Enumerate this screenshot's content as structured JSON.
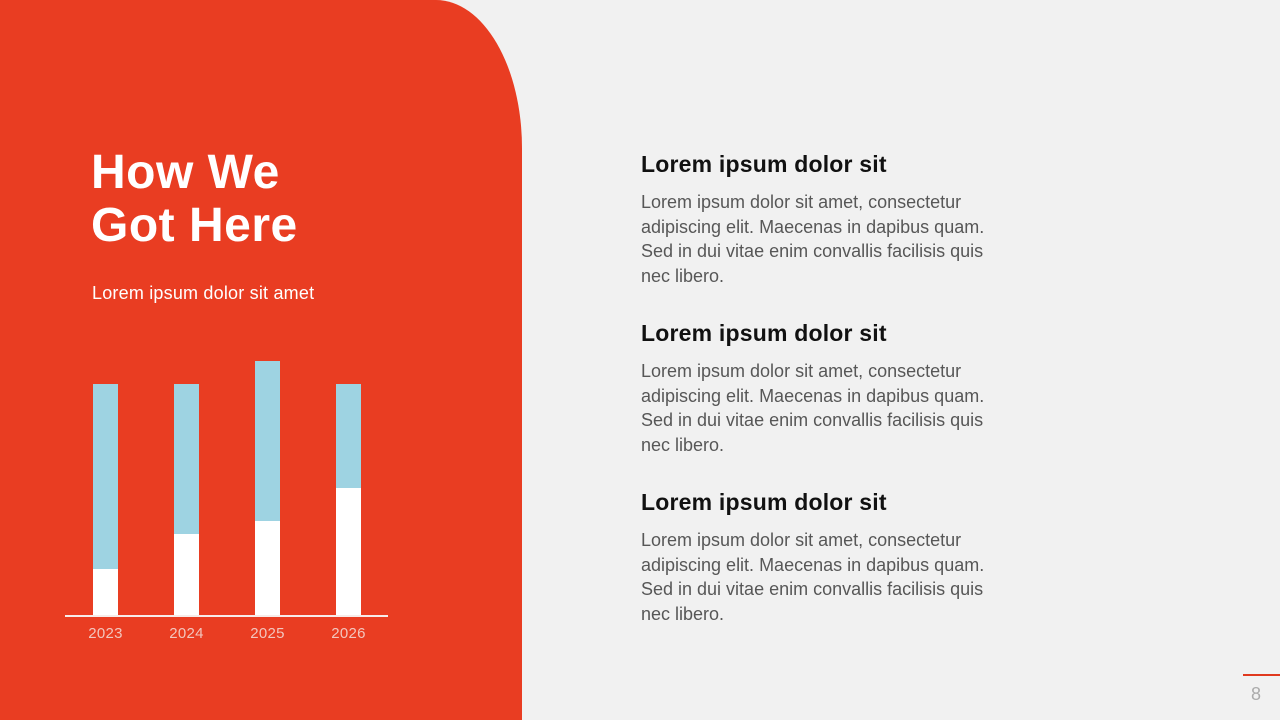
{
  "slide": {
    "page_number": "8",
    "background_color": "#F1F1F1",
    "accent_color": "#E93D22"
  },
  "left_panel": {
    "background_color": "#E93D22",
    "text_color": "#FFFFFF",
    "title_line1": "How We",
    "title_line2": "Got Here",
    "subtitle": "Lorem ipsum dolor sit amet"
  },
  "chart_data": {
    "type": "bar",
    "stacked": true,
    "title": "",
    "xlabel": "",
    "ylabel": "",
    "categories": [
      "2023",
      "2024",
      "2025",
      "2026"
    ],
    "series": [
      {
        "name": "bottom segment",
        "color": "#FFFFFF",
        "values": [
          18,
          32,
          37,
          50
        ]
      },
      {
        "name": "top segment",
        "color": "#9ED3E2",
        "values": [
          73,
          59,
          63,
          41
        ]
      }
    ],
    "ylim": [
      0,
      100
    ],
    "grid": false,
    "legend": false,
    "axis_line_color": "#F7ECEA",
    "tick_label_color": "#F2C6BE"
  },
  "sections": [
    {
      "heading": "Lorem ipsum dolor sit",
      "body": "Lorem ipsum dolor sit amet, consectetur adipiscing elit. Maecenas in dapibus quam. Sed in dui vitae enim convallis facilisis quis nec libero."
    },
    {
      "heading": "Lorem ipsum dolor sit",
      "body": "Lorem ipsum dolor sit amet, consectetur adipiscing elit. Maecenas in dapibus quam. Sed in dui vitae enim convallis facilisis quis nec libero."
    },
    {
      "heading": "Lorem ipsum dolor sit",
      "body": "Lorem ipsum dolor sit amet, consectetur adipiscing elit. Maecenas in dapibus quam. Sed in dui vitae enim convallis facilisis quis nec libero."
    }
  ],
  "footer": {
    "line_color": "#E0391E",
    "page_number_color": "#ABABAB"
  }
}
